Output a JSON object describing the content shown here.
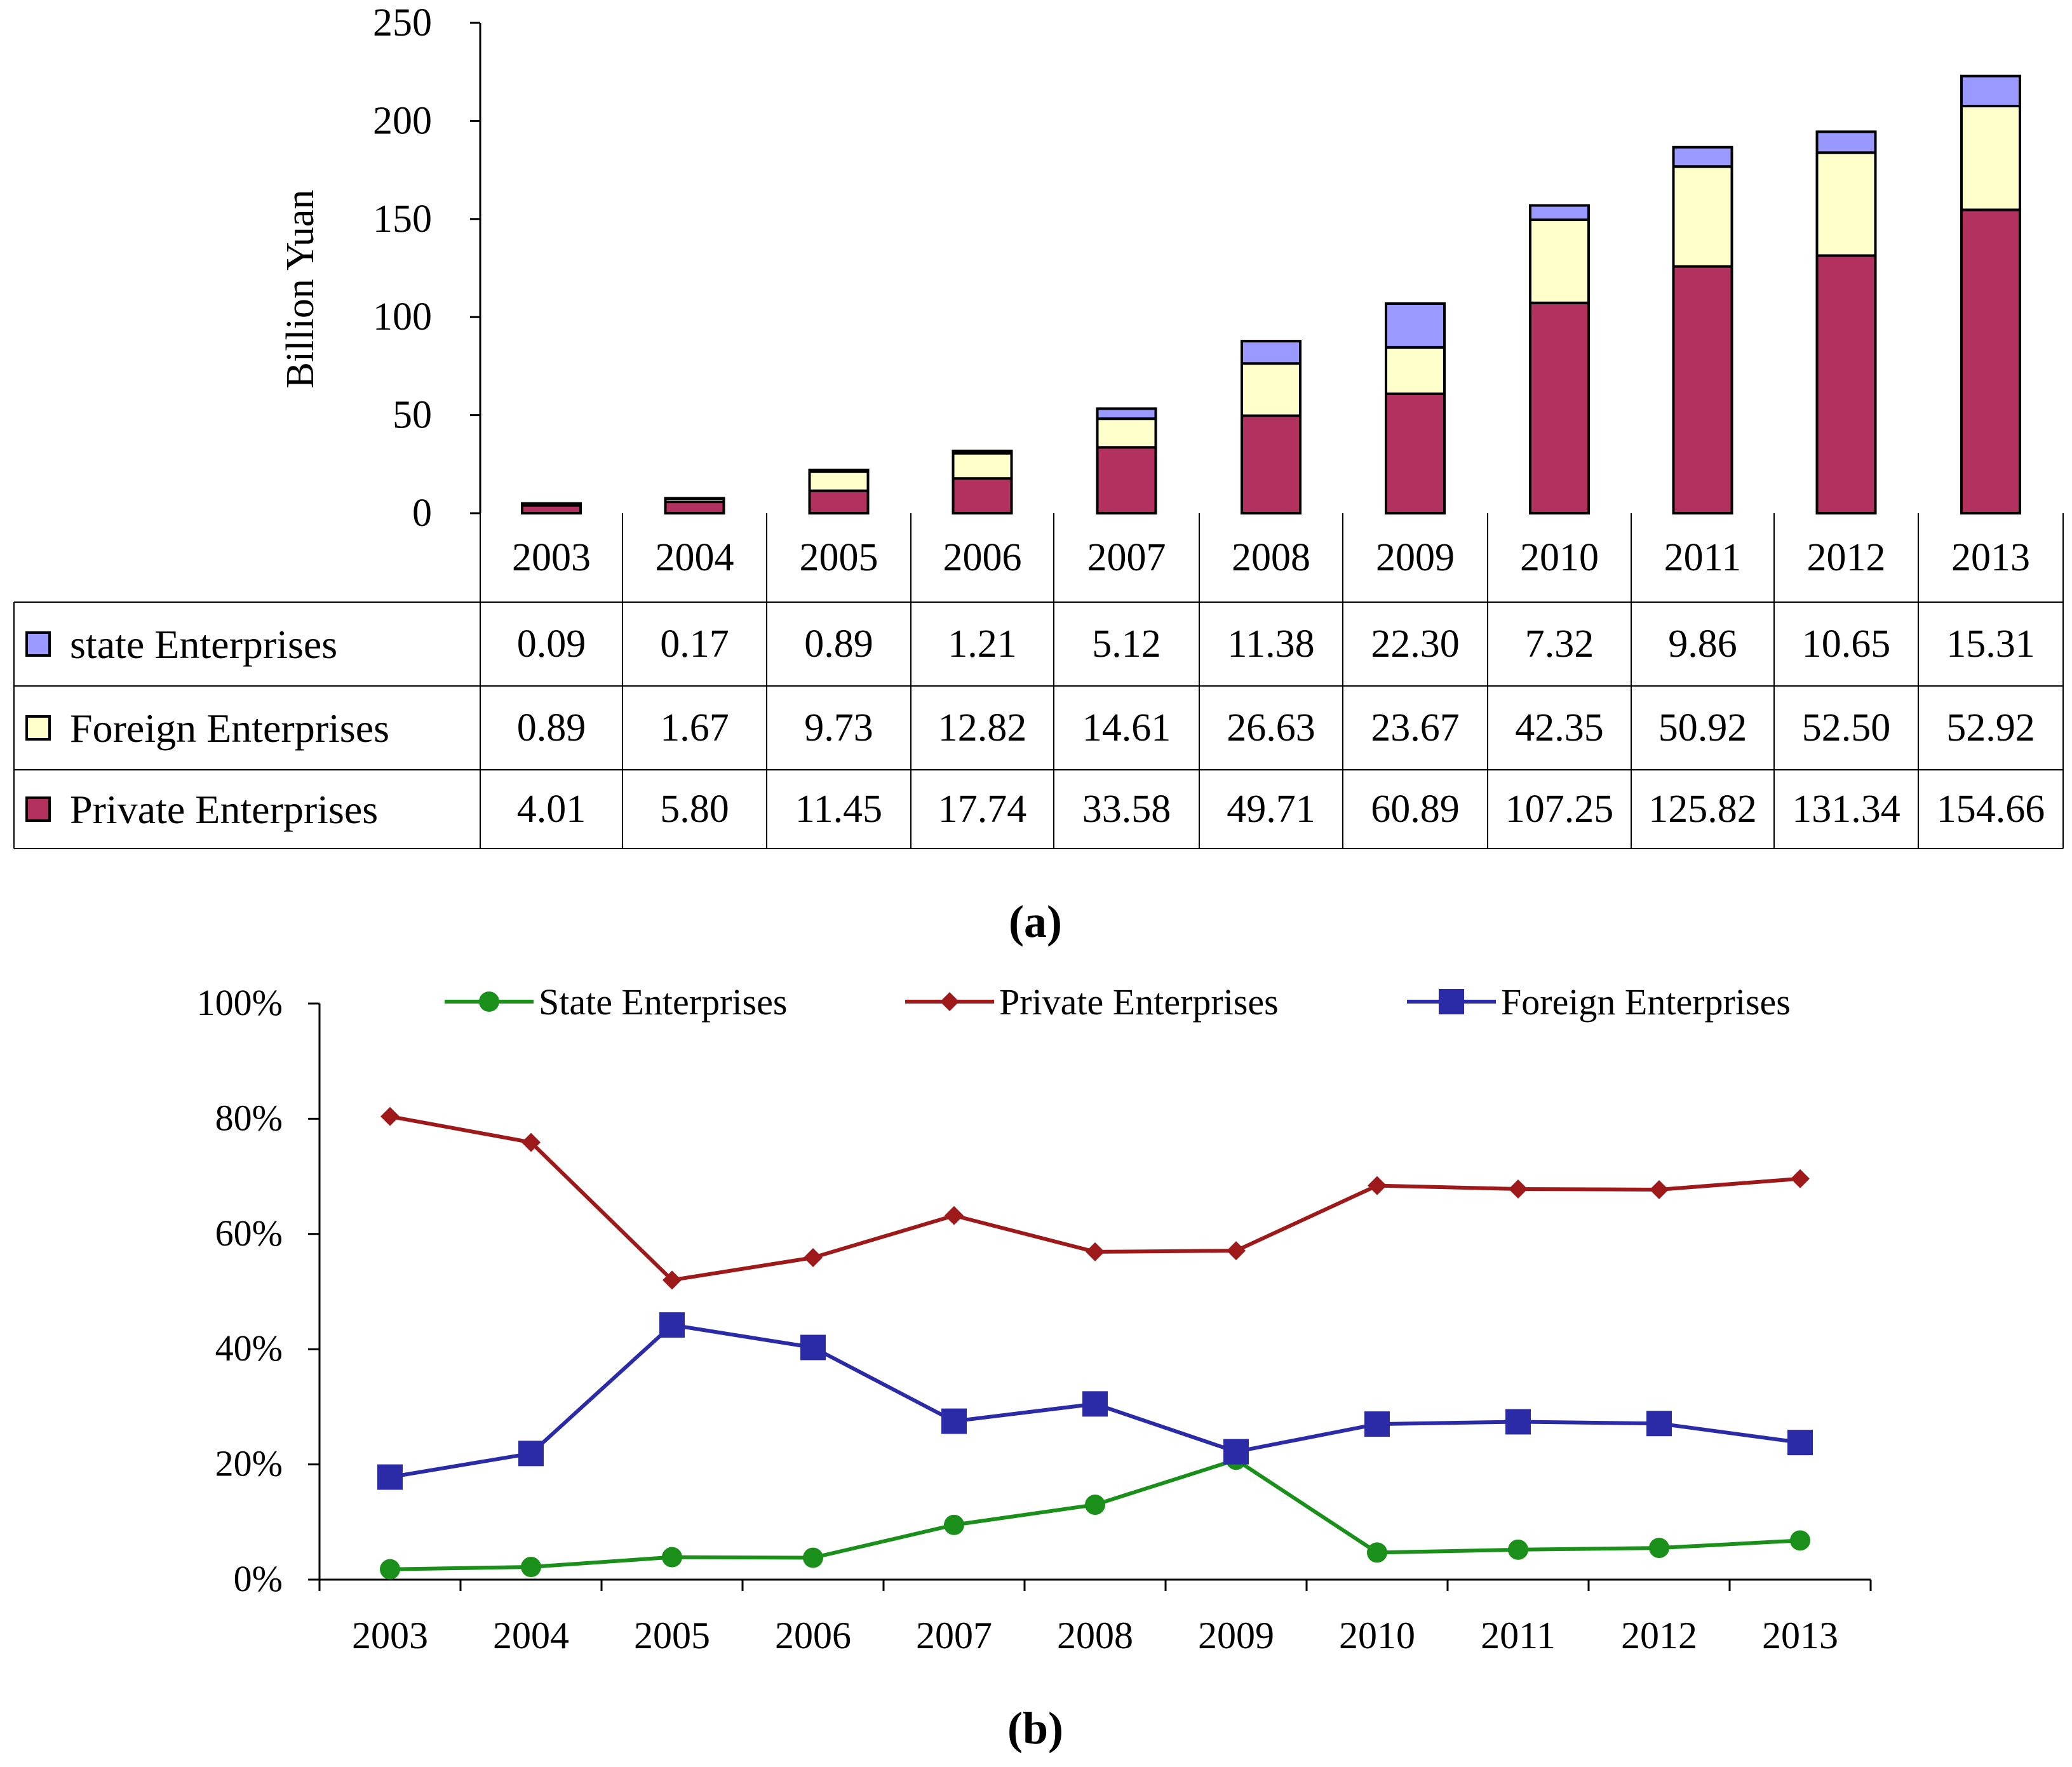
{
  "chart_data": [
    {
      "type": "bar",
      "stacked": true,
      "panel_label": "(a)",
      "ylabel": "Billion Yuan",
      "ylim": [
        0,
        250
      ],
      "yticks": [
        "0",
        "50",
        "100",
        "150",
        "200",
        "250"
      ],
      "categories": [
        "2003",
        "2004",
        "2005",
        "2006",
        "2007",
        "2008",
        "2009",
        "2010",
        "2011",
        "2012",
        "2013"
      ],
      "series": [
        {
          "name": "Private Enterprises",
          "color": "#b3315f",
          "values": [
            4.01,
            5.8,
            11.45,
            17.74,
            33.58,
            49.71,
            60.89,
            107.25,
            125.82,
            131.34,
            154.66
          ],
          "labels": [
            "4.01",
            "5.80",
            "11.45",
            "17.74",
            "33.58",
            "49.71",
            "60.89",
            "107.25",
            "125.82",
            "131.34",
            "154.66"
          ]
        },
        {
          "name": "Foreign Enterprises",
          "color": "#ffffcc",
          "values": [
            0.89,
            1.67,
            9.73,
            12.82,
            14.61,
            26.63,
            23.67,
            42.35,
            50.92,
            52.5,
            52.92
          ],
          "labels": [
            "0.89",
            "1.67",
            "9.73",
            "12.82",
            "14.61",
            "26.63",
            "23.67",
            "42.35",
            "50.92",
            "52.50",
            "52.92"
          ]
        },
        {
          "name": "state Enterprises",
          "color": "#9999ff",
          "values": [
            0.09,
            0.17,
            0.89,
            1.21,
            5.12,
            11.38,
            22.3,
            7.32,
            9.86,
            10.65,
            15.31
          ],
          "labels": [
            "0.09",
            "0.17",
            "0.89",
            "1.21",
            "5.12",
            "11.38",
            "22.30",
            "7.32",
            "9.86",
            "10.65",
            "15.31"
          ]
        }
      ],
      "table_row_order": [
        "state Enterprises",
        "Foreign Enterprises",
        "Private Enterprises"
      ],
      "grid": false
    },
    {
      "type": "line",
      "panel_label": "(b)",
      "ylim": [
        0,
        100
      ],
      "yticks": [
        "0%",
        "20%",
        "40%",
        "60%",
        "80%",
        "100%"
      ],
      "categories": [
        "2003",
        "2004",
        "2005",
        "2006",
        "2007",
        "2008",
        "2009",
        "2010",
        "2011",
        "2012",
        "2013"
      ],
      "legend_position": "top",
      "series": [
        {
          "name": "State Enterprises",
          "color": "#1a8f1a",
          "marker": "circle",
          "values": [
            1.8,
            2.2,
            3.9,
            3.8,
            9.5,
            13.0,
            20.8,
            4.7,
            5.2,
            5.5,
            6.8
          ]
        },
        {
          "name": "Private Enterprises",
          "color": "#9e1a1a",
          "marker": "diamond",
          "values": [
            80.4,
            75.9,
            52.0,
            55.9,
            63.2,
            56.9,
            57.1,
            68.4,
            67.8,
            67.7,
            69.6
          ]
        },
        {
          "name": "Foreign Enterprises",
          "color": "#2b2ba8",
          "marker": "square",
          "values": [
            17.8,
            21.9,
            44.2,
            40.3,
            27.5,
            30.5,
            22.2,
            27.0,
            27.4,
            27.1,
            23.8
          ]
        }
      ],
      "grid": false
    }
  ]
}
